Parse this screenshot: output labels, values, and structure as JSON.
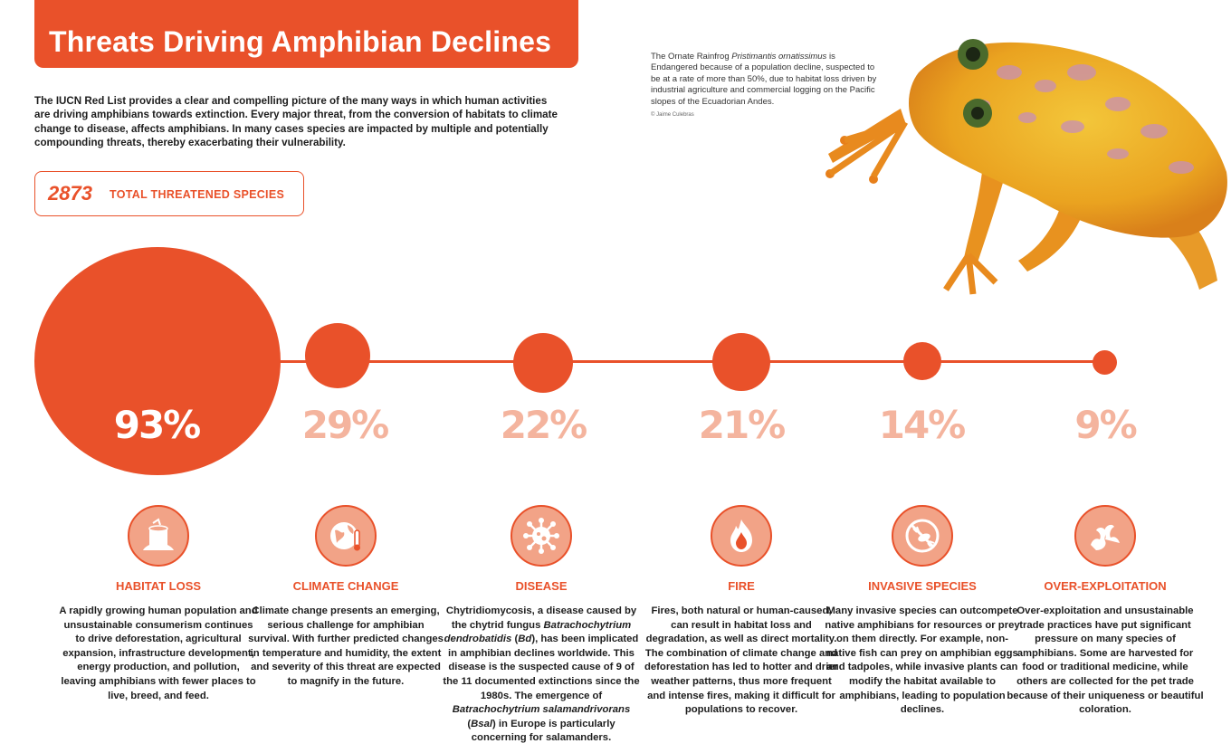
{
  "title": "Threats Driving Amphibian Declines",
  "intro": "The IUCN Red List provides a clear and compelling picture of the many ways in which human activities are driving amphibians towards extinction. Every major threat, from the conversion of habitats to climate change to disease, affects amphibians. In many cases species are impacted by multiple and potentially compounding threats, thereby exacerbating their vulnerability.",
  "total": {
    "number": "2873",
    "label": "TOTAL THREATENED SPECIES"
  },
  "caption": {
    "pre": "The Ornate Rainfrog ",
    "species": "Pristimantis ornatissimus",
    "post": " is Endangered because of a population decline, suspected to be at a rate of more than 50%, due to habitat loss driven by industrial agriculture and commercial logging on the Pacific slopes of the Ecuadorian Andes.",
    "credit": "© Jaime Culebras"
  },
  "colors": {
    "accent": "#e9512a",
    "light": "#f4b49e"
  },
  "threats": [
    {
      "percent": "93%",
      "value": 93,
      "name": "HABITAT LOSS",
      "icon": "tree-stump-icon",
      "text": "A rapidly growing human population and unsustainable consumerism continues to drive deforestation, agricultural expansion, infrastructure development, energy production, and pollution, leaving amphibians with fewer places to live, breed, and feed."
    },
    {
      "percent": "29%",
      "value": 29,
      "name": "CLIMATE CHANGE",
      "icon": "globe-thermometer-icon",
      "text": "Climate change presents an emerging, serious challenge for amphibian survival. With further predicted changes in temperature and humidity, the extent and severity of this threat are expected to magnify in the future."
    },
    {
      "percent": "22%",
      "value": 22,
      "name": "DISEASE",
      "icon": "virus-icon",
      "text_parts": [
        "Chytridiomycosis, a disease caused by the chytrid fungus ",
        "Batrachochytrium dendrobatidis",
        " (",
        "Bd",
        "), has been implicated in amphibian declines worldwide. This disease is the suspected cause of 9 of the 11 documented extinctions since the 1980s. The emergence of ",
        "Batrachochytrium salamandrivorans",
        " (",
        "Bsal",
        ") in Europe is particularly concerning for salamanders."
      ]
    },
    {
      "percent": "21%",
      "value": 21,
      "name": "FIRE",
      "icon": "fire-icon",
      "text": "Fires, both natural or human-caused, can result in habitat loss and degradation, as well as direct mortality. The combination of climate change and deforestation has led to hotter and drier weather patterns, thus more frequent and intense fires, making it difficult for populations to recover."
    },
    {
      "percent": "14%",
      "value": 14,
      "name": "INVASIVE SPECIES",
      "icon": "no-crayfish-icon",
      "text": "Many invasive species can outcompete native amphibians for resources or prey on them directly. For example, non-native fish can prey on amphibian eggs and tadpoles, while invasive plants can modify the habitat available to amphibians, leading to population declines."
    },
    {
      "percent": "9%",
      "value": 9,
      "name": "OVER-EXPLOITATION",
      "icon": "hands-icon",
      "text": "Over-exploitation and unsustainable trade practices have put significant pressure on many species of amphibians. Some are harvested for food or traditional medicine, while others are collected for the pet trade because of their uniqueness or beautiful coloration."
    }
  ]
}
